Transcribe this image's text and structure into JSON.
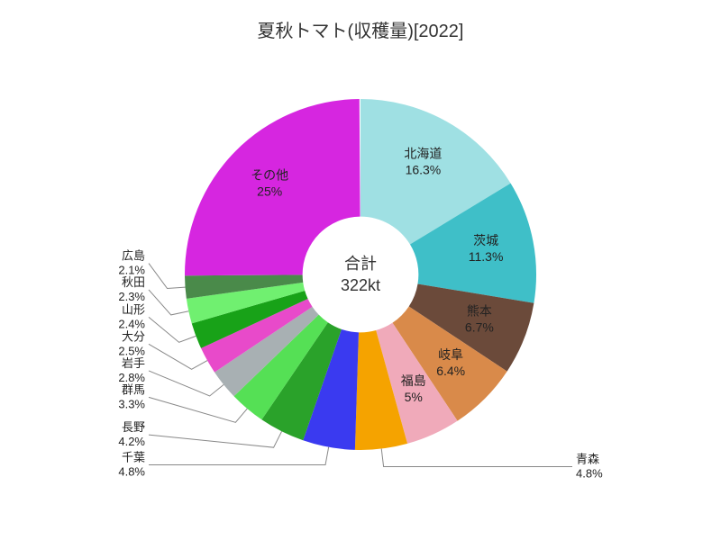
{
  "chart": {
    "type": "pie",
    "title": "夏秋トマト(収穫量)[2022]",
    "title_fontsize": 20,
    "center_label_top": "合計",
    "center_label_bottom": "322kt",
    "center_fontsize": 18,
    "background_color": "#ffffff",
    "inner_radius_ratio": 0.33,
    "start_angle_deg": -90,
    "slices": [
      {
        "name": "北海道",
        "pct": 16.3,
        "color": "#9fe0e3",
        "label_inside": true
      },
      {
        "name": "茨城",
        "pct": 11.3,
        "color": "#3fbfc8",
        "label_inside": true
      },
      {
        "name": "熊本",
        "pct": 6.7,
        "color": "#6b4a3a",
        "label_inside": true,
        "text_color": "#ffffff"
      },
      {
        "name": "岐阜",
        "pct": 6.4,
        "color": "#d98a4a",
        "label_inside": true
      },
      {
        "name": "福島",
        "pct": 5.0,
        "color": "#f0aaba",
        "label_inside": true
      },
      {
        "name": "青森",
        "pct": 4.8,
        "color": "#f5a300",
        "label_inside": false
      },
      {
        "name": "千葉",
        "pct": 4.8,
        "color": "#3a3af0",
        "label_inside": false
      },
      {
        "name": "長野",
        "pct": 4.2,
        "color": "#2aa22a",
        "label_inside": false
      },
      {
        "name": "群馬",
        "pct": 3.3,
        "color": "#55e055",
        "label_inside": false
      },
      {
        "name": "岩手",
        "pct": 2.8,
        "color": "#a8b0b3",
        "label_inside": false
      },
      {
        "name": "大分",
        "pct": 2.5,
        "color": "#e84aca",
        "label_inside": false
      },
      {
        "name": "山形",
        "pct": 2.4,
        "color": "#18a218",
        "label_inside": false
      },
      {
        "name": "秋田",
        "pct": 2.3,
        "color": "#70f070",
        "label_inside": false
      },
      {
        "name": "広島",
        "pct": 2.1,
        "color": "#4a8a4a",
        "label_inside": false
      },
      {
        "name": "その他",
        "pct": 25.0,
        "color": "#d626e0",
        "label_inside": true
      }
    ],
    "leader_color": "#888888",
    "label_fontsize": 14,
    "ext_label_fontsize": 13
  }
}
